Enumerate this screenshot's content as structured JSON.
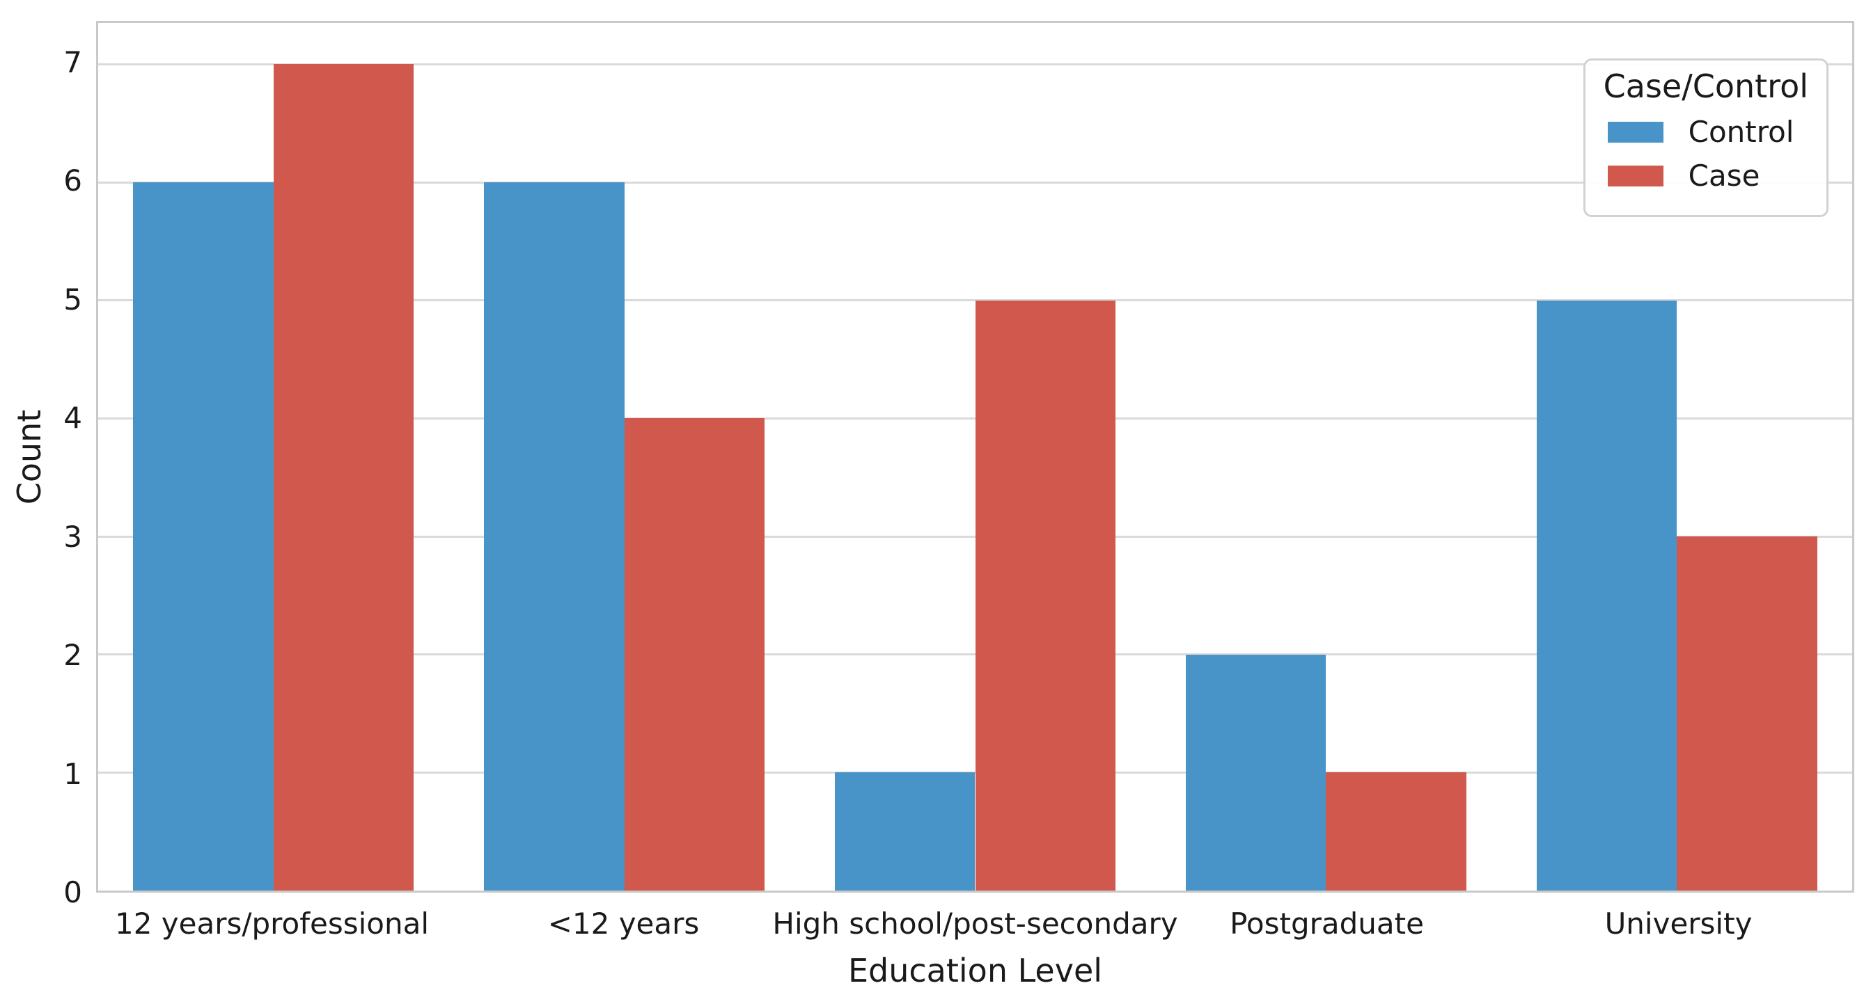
{
  "figure": {
    "background": "#ffffff",
    "text_color": "#1a1a1a",
    "grid_color": "#dadada",
    "spine_color": "#c9c9c9"
  },
  "chart_data": {
    "type": "bar",
    "title": "",
    "xlabel": "Education Level",
    "ylabel": "Count",
    "categories": [
      "12 years/professional",
      "<12 years",
      "High school/post-secondary",
      "Postgraduate",
      "University"
    ],
    "series": [
      {
        "name": "Control",
        "color": "#4894C8",
        "values": [
          6,
          6,
          1,
          2,
          5
        ]
      },
      {
        "name": "Case",
        "color": "#D0584C",
        "values": [
          7,
          4,
          5,
          1,
          3
        ]
      }
    ],
    "legend": {
      "title": "Case/Control",
      "position": "upper right"
    },
    "y_ticks": [
      0,
      1,
      2,
      3,
      4,
      5,
      6,
      7
    ],
    "ylim": [
      0,
      7.35
    ],
    "grid": "horizontal",
    "bar_group_width": 0.8
  }
}
